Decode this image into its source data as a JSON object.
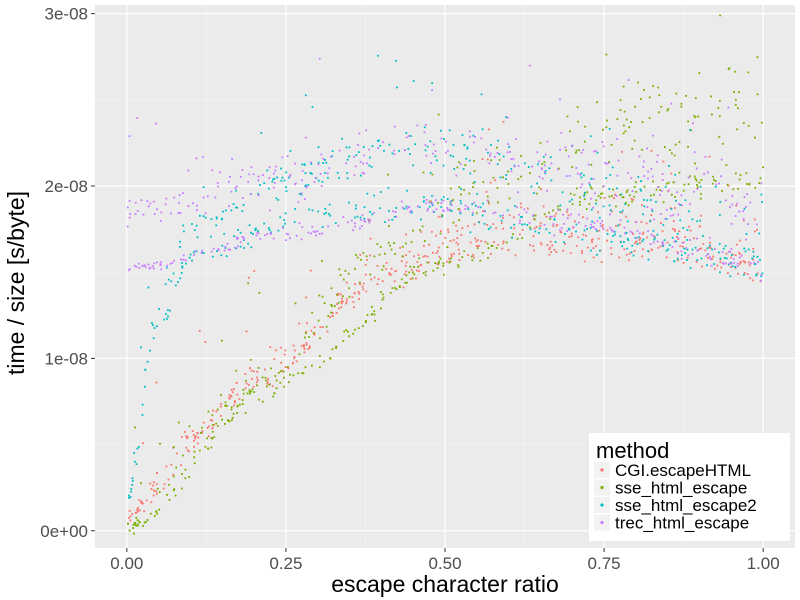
{
  "chart_data": {
    "type": "scatter",
    "xlabel": "escape character ratio",
    "ylabel": "time / size [s/byte]",
    "xlim": [
      -0.05,
      1.05
    ],
    "ylim": [
      -1e-09,
      3.05e-08
    ],
    "x_ticks": [
      {
        "value": 0.0,
        "label": "0.00"
      },
      {
        "value": 0.25,
        "label": "0.25"
      },
      {
        "value": 0.5,
        "label": "0.50"
      },
      {
        "value": 0.75,
        "label": "0.75"
      },
      {
        "value": 1.0,
        "label": "1.00"
      }
    ],
    "y_ticks": [
      {
        "value": 0,
        "label": "0e+00"
      },
      {
        "value": 1e-08,
        "label": "1e-08"
      },
      {
        "value": 2e-08,
        "label": "2e-08"
      },
      {
        "value": 3e-08,
        "label": "3e-08"
      }
    ],
    "grid": true,
    "legend": {
      "title": "method",
      "placement": "bottom-right inside"
    },
    "series": [
      {
        "name": "CGI.escapeHTML",
        "color": "#F8766D",
        "bands": [
          {
            "points": [
              [
                0.0,
                1e-09
              ],
              [
                0.1,
                5.5e-09
              ],
              [
                0.25,
                1.05e-08
              ],
              [
                0.4,
                1.55e-08
              ],
              [
                0.55,
                1.8e-08
              ],
              [
                0.75,
                1.8e-08
              ],
              [
                1.0,
                1.65e-08
              ]
            ],
            "spread": 1.2e-09
          },
          {
            "points": [
              [
                0.0,
                1.2e-09
              ],
              [
                0.2,
                8.5e-09
              ],
              [
                0.4,
                1.45e-08
              ],
              [
                0.55,
                1.65e-08
              ],
              [
                0.7,
                1.65e-08
              ],
              [
                0.85,
                1.65e-08
              ],
              [
                1.0,
                1.5e-08
              ]
            ],
            "spread": 6e-10
          }
        ]
      },
      {
        "name": "sse_html_escape",
        "color": "#7CAE00",
        "bands": [
          {
            "points": [
              [
                0.0,
                3e-10
              ],
              [
                0.25,
                9e-09
              ],
              [
                0.5,
                1.55e-08
              ],
              [
                0.75,
                1.95e-08
              ],
              [
                1.0,
                2.05e-08
              ]
            ],
            "spread": 5e-10
          },
          {
            "points": [
              [
                0.0,
                5e-10
              ],
              [
                0.2,
                8e-09
              ],
              [
                0.4,
                1.6e-08
              ],
              [
                0.6,
                2.05e-08
              ],
              [
                0.8,
                2.4e-08
              ],
              [
                1.0,
                2.5e-08
              ]
            ],
            "spread": 1.5e-09
          }
        ]
      },
      {
        "name": "sse_html_escape2",
        "color": "#00BFC4",
        "bands": [
          {
            "points": [
              [
                0.0,
                2e-09
              ],
              [
                0.05,
                1.3e-08
              ],
              [
                0.1,
                1.75e-08
              ],
              [
                0.25,
                2.05e-08
              ],
              [
                0.45,
                2.25e-08
              ],
              [
                0.6,
                2.15e-08
              ],
              [
                0.8,
                1.85e-08
              ],
              [
                1.0,
                1.6e-08
              ]
            ],
            "spread": 1.5e-09
          },
          {
            "points": [
              [
                0.0,
                2e-09
              ],
              [
                0.05,
                1.2e-08
              ],
              [
                0.1,
                1.6e-08
              ],
              [
                0.3,
                1.85e-08
              ],
              [
                0.5,
                1.88e-08
              ],
              [
                0.75,
                1.7e-08
              ],
              [
                1.0,
                1.55e-08
              ]
            ],
            "spread": 8e-10
          }
        ]
      },
      {
        "name": "trec_html_escape",
        "color": "#C77CFF",
        "bands": [
          {
            "points": [
              [
                0.0,
                1.85e-08
              ],
              [
                0.25,
                2.05e-08
              ],
              [
                0.45,
                2.25e-08
              ],
              [
                0.65,
                2.15e-08
              ],
              [
                1.0,
                1.9e-08
              ]
            ],
            "spread": 1.5e-09
          },
          {
            "points": [
              [
                0.0,
                1.52e-08
              ],
              [
                0.25,
                1.72e-08
              ],
              [
                0.5,
                1.88e-08
              ],
              [
                0.7,
                1.8e-08
              ],
              [
                1.0,
                1.55e-08
              ]
            ],
            "spread": 5e-10
          }
        ]
      }
    ]
  }
}
